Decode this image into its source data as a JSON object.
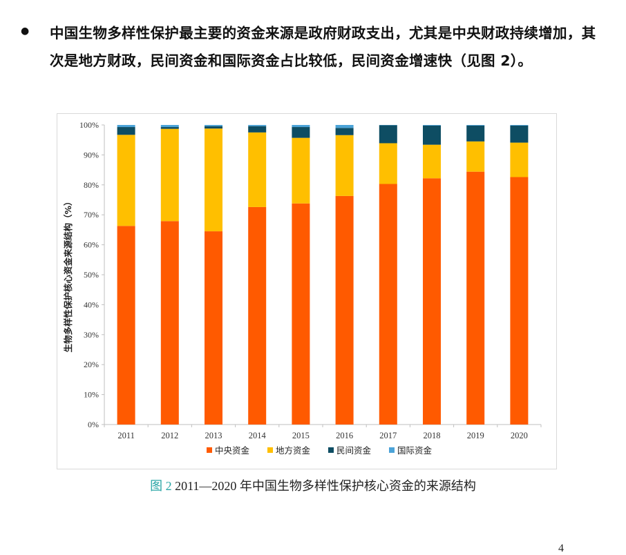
{
  "bullet": {
    "symbol": "●",
    "text": "中国生物多样性保护最主要的资金来源是政府财政支出，尤其是中央财政持续增加，其次是地方财政，民间资金和国际资金占比较低，民间资金增速快（见图 2）。"
  },
  "caption": {
    "figure_number": "图 2",
    "title": " 2011—2020 年中国生物多样性保护核心资金的来源结构"
  },
  "page_number": "4",
  "chart_data": {
    "type": "bar",
    "stacked": true,
    "title": "",
    "xlabel": "",
    "ylabel": "生物多样性保护核心资金来源结构（%）",
    "ylim": [
      0,
      100
    ],
    "ytick_labels": [
      "0%",
      "10%",
      "20%",
      "30%",
      "40%",
      "50%",
      "60%",
      "70%",
      "80%",
      "90%",
      "100%"
    ],
    "grid": false,
    "legend_position": "bottom",
    "categories": [
      "2011",
      "2012",
      "2013",
      "2014",
      "2015",
      "2016",
      "2017",
      "2018",
      "2019",
      "2020"
    ],
    "series": [
      {
        "name": "中央资金",
        "color": "#ff5a00",
        "values": [
          66.3,
          67.9,
          64.5,
          72.6,
          73.8,
          76.3,
          80.3,
          82.2,
          84.4,
          82.6
        ]
      },
      {
        "name": "地方资金",
        "color": "#ffbf00",
        "values": [
          30.4,
          30.8,
          34.3,
          24.9,
          21.9,
          20.3,
          13.6,
          11.2,
          10.1,
          11.5
        ]
      },
      {
        "name": "民间资金",
        "color": "#0e4d63",
        "values": [
          2.6,
          0.6,
          0.8,
          2.1,
          3.6,
          2.4,
          6.0,
          6.4,
          5.3,
          5.7
        ]
      },
      {
        "name": "国际资金",
        "color": "#4ba3d8",
        "values": [
          0.7,
          0.7,
          0.4,
          0.4,
          0.7,
          1.0,
          0.1,
          0.2,
          0.2,
          0.2
        ]
      }
    ]
  }
}
